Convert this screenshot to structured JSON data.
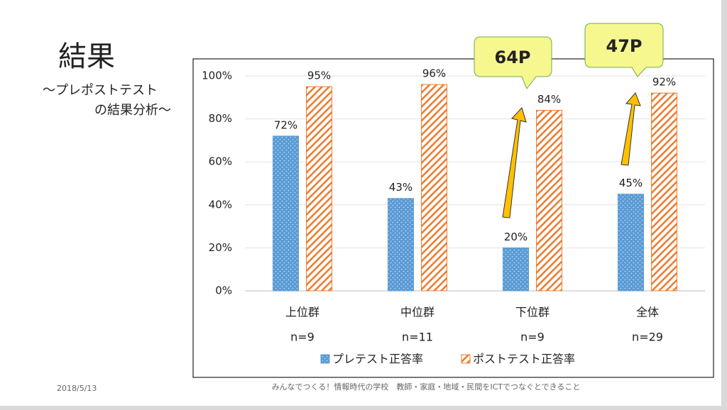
{
  "slide": {
    "title": "結果",
    "subtitle": [
      "～プレポストテスト",
      "の結果分析～"
    ],
    "date": "2018/5/13",
    "footer": "みんなでつくる！情報時代の学校　教師・家庭・地域・民間をICTでつなぐとできること"
  },
  "chart_data": {
    "type": "bar",
    "categories": [
      "上位群",
      "中位群",
      "下位群",
      "全体"
    ],
    "category_notes": [
      "n=9",
      "n=11",
      "n=9",
      "n=29"
    ],
    "series": [
      {
        "name": "プレテスト正答率",
        "color": "#5b9bd5",
        "values": [
          72,
          43,
          20,
          45
        ],
        "value_labels": [
          "72%",
          "43%",
          "20%",
          "45%"
        ]
      },
      {
        "name": "ポストテスト正答率",
        "color": "#ed7d31",
        "values": [
          95,
          96,
          84,
          92
        ],
        "value_labels": [
          "95%",
          "96%",
          "84%",
          "92%"
        ]
      }
    ],
    "ylim": [
      0,
      100
    ],
    "yticks": [
      {
        "value": 0,
        "label": "0%"
      },
      {
        "value": 20,
        "label": "20%"
      },
      {
        "value": 40,
        "label": "40%"
      },
      {
        "value": 60,
        "label": "60%"
      },
      {
        "value": 80,
        "label": "80%"
      },
      {
        "value": 100,
        "label": "100%"
      }
    ],
    "grid": true,
    "annotations": [
      "64P",
      "47P"
    ]
  }
}
